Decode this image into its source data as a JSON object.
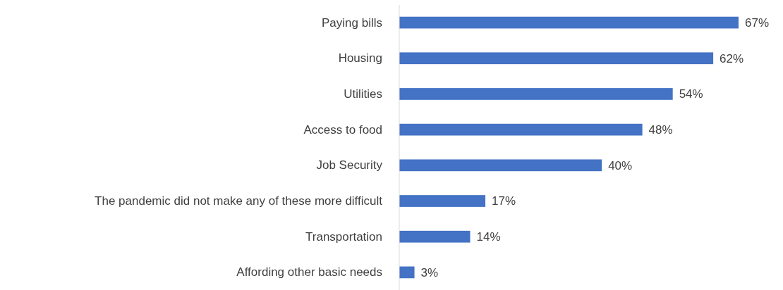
{
  "chart_data": {
    "type": "bar",
    "orientation": "horizontal",
    "categories": [
      "Paying bills",
      "Housing",
      "Utilities",
      "Access to food",
      "Job Security",
      "The pandemic did not make any of these more difficult",
      "Transportation",
      "Affording other basic needs"
    ],
    "values": [
      67,
      62,
      54,
      48,
      40,
      17,
      14,
      3
    ],
    "value_labels": [
      "67%",
      "62%",
      "54%",
      "48%",
      "40%",
      "17%",
      "14%",
      "3%"
    ],
    "color": "#4472c4"
  }
}
